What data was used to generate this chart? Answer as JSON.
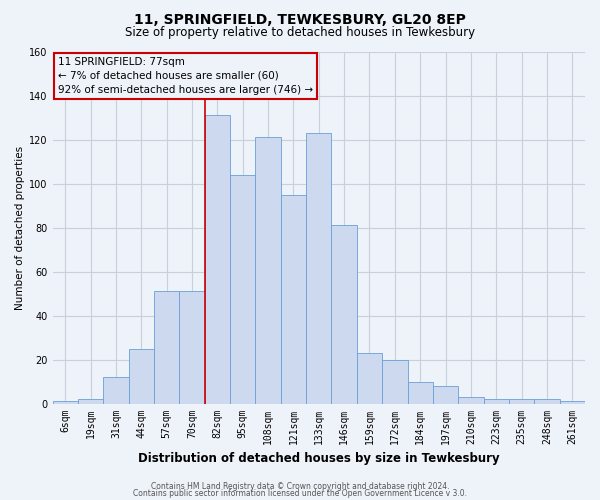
{
  "title": "11, SPRINGFIELD, TEWKESBURY, GL20 8EP",
  "subtitle": "Size of property relative to detached houses in Tewkesbury",
  "xlabel": "Distribution of detached houses by size in Tewkesbury",
  "ylabel": "Number of detached properties",
  "bar_labels": [
    "6sqm",
    "19sqm",
    "31sqm",
    "44sqm",
    "57sqm",
    "70sqm",
    "82sqm",
    "95sqm",
    "108sqm",
    "121sqm",
    "133sqm",
    "146sqm",
    "159sqm",
    "172sqm",
    "184sqm",
    "197sqm",
    "210sqm",
    "223sqm",
    "235sqm",
    "248sqm",
    "261sqm"
  ],
  "bar_values": [
    1,
    2,
    12,
    25,
    51,
    51,
    131,
    104,
    121,
    95,
    123,
    81,
    23,
    20,
    10,
    8,
    3,
    2,
    2,
    2,
    1
  ],
  "bar_color": "#ccd9ee",
  "bar_edge_color": "#6a9fd8",
  "annotation_title": "11 SPRINGFIELD: 77sqm",
  "annotation_line1": "← 7% of detached houses are smaller (60)",
  "annotation_line2": "92% of semi-detached houses are larger (746) →",
  "annotation_box_color": "#cc0000",
  "red_line_x": 6,
  "ylim": [
    0,
    160
  ],
  "yticks": [
    0,
    20,
    40,
    60,
    80,
    100,
    120,
    140,
    160
  ],
  "footer1": "Contains HM Land Registry data © Crown copyright and database right 2024.",
  "footer2": "Contains public sector information licensed under the Open Government Licence v 3.0.",
  "background_color": "#eef2f9",
  "grid_color": "#c8d0de",
  "title_fontsize": 10,
  "subtitle_fontsize": 8.5,
  "xlabel_fontsize": 8.5,
  "ylabel_fontsize": 7.5,
  "tick_fontsize": 7,
  "annotation_fontsize": 7.5,
  "footer_fontsize": 5.5
}
